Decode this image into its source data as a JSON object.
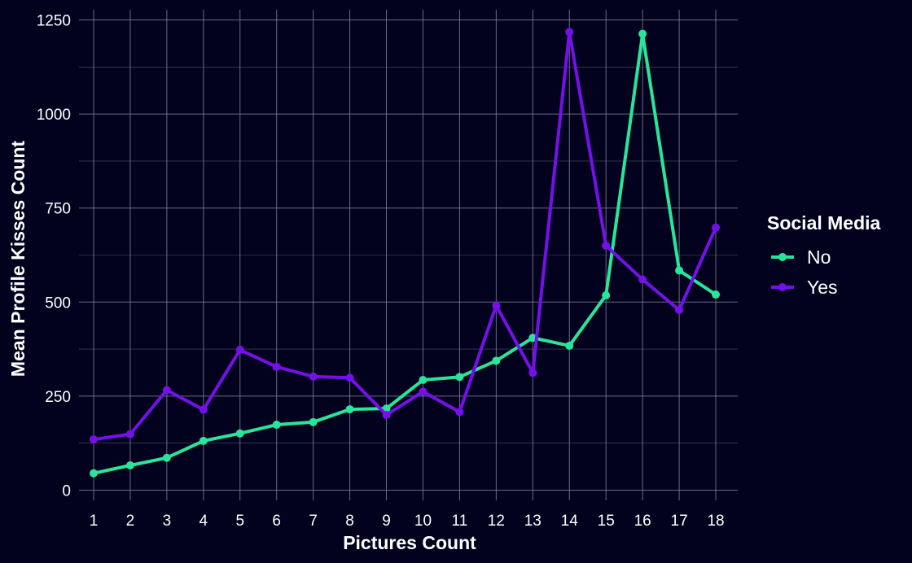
{
  "chart_data": {
    "type": "line",
    "title": "",
    "xlabel": "Pictures Count",
    "ylabel": "Mean Profile Kisses Count",
    "x": [
      1,
      2,
      3,
      4,
      5,
      6,
      7,
      8,
      9,
      10,
      11,
      12,
      13,
      14,
      15,
      16,
      17,
      18
    ],
    "xlim": [
      0.6,
      18.6
    ],
    "ylim": [
      0,
      1250
    ],
    "yticks": [
      0,
      250,
      500,
      750,
      1000,
      1250
    ],
    "grid": true,
    "legend": {
      "title": "Social Media",
      "placement": "right"
    },
    "series": [
      {
        "name": "No",
        "color": "#29e59a",
        "values": [
          45,
          66,
          86,
          131,
          151,
          174,
          181,
          215,
          217,
          293,
          301,
          344,
          405,
          384,
          518,
          1213,
          584,
          520
        ]
      },
      {
        "name": "Yes",
        "color": "#7510e8",
        "values": [
          135,
          149,
          266,
          214,
          373,
          328,
          302,
          299,
          200,
          262,
          208,
          491,
          312,
          1218,
          650,
          560,
          479,
          698
        ]
      }
    ]
  }
}
